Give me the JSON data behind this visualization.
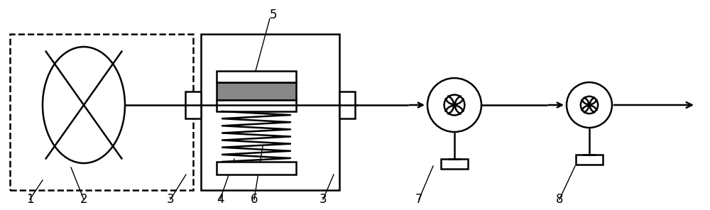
{
  "bg_color": "#ffffff",
  "line_color": "#000000",
  "gray_fill": "#888888",
  "figsize": [
    10.0,
    2.96
  ],
  "dpi": 100,
  "lw": 1.8,
  "label_lw": 1.0,
  "label_fs": 12
}
